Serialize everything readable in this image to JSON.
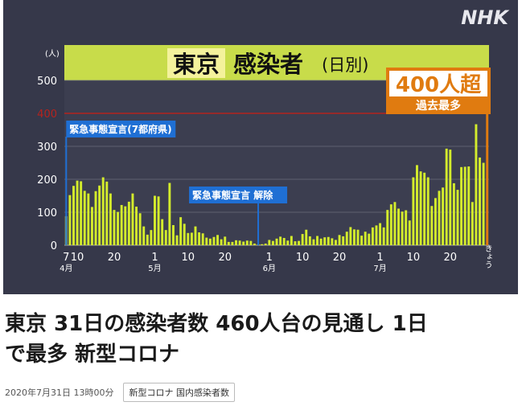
{
  "broadcaster_logo": "NHK",
  "article": {
    "headline_line1": "東京 31日の感染者数 460人台の見通し 1日",
    "headline_line2": "で最多 新型コロナ",
    "timestamp": "2020年7月31日 13時00分",
    "tag": "新型コロナ 国内感染者数"
  },
  "colors": {
    "background": "#36384a",
    "title_bar": "#c8dc4a",
    "bar": "#d4ec2c",
    "threshold_line": "#b4231e",
    "callout_blue": "#1f6fd4",
    "highlight_orange": "#e07b10",
    "axis_text": "#ffffff"
  },
  "chart_data": {
    "type": "bar",
    "title_place": "東京",
    "title_main": "感染者",
    "title_suffix": "(日別)",
    "ylabel": "(人)",
    "ylim": [
      0,
      500
    ],
    "yticks": [
      "500",
      "400",
      "300",
      "200",
      "100",
      "0"
    ],
    "grid": true,
    "threshold": {
      "value": 400,
      "label": "400"
    },
    "xtick_labels": [
      {
        "index": 0,
        "label": "7"
      },
      {
        "index": 3,
        "label": "10"
      },
      {
        "index": 13,
        "label": "20"
      },
      {
        "index": 24,
        "label": "1"
      },
      {
        "index": 33,
        "label": "10"
      },
      {
        "index": 43,
        "label": "20"
      },
      {
        "index": 55,
        "label": "1"
      },
      {
        "index": 64,
        "label": "10"
      },
      {
        "index": 74,
        "label": "20"
      },
      {
        "index": 85,
        "label": "1"
      },
      {
        "index": 94,
        "label": "10"
      },
      {
        "index": 104,
        "label": "20"
      },
      {
        "index": 114,
        "label": "きょう"
      }
    ],
    "month_labels": [
      {
        "index": 0,
        "label": "4月"
      },
      {
        "index": 24,
        "label": "5月"
      },
      {
        "index": 55,
        "label": "6月"
      },
      {
        "index": 85,
        "label": "7月"
      }
    ],
    "values": [
      88,
      152,
      180,
      196,
      194,
      165,
      157,
      116,
      164,
      181,
      206,
      193,
      157,
      107,
      101,
      122,
      118,
      132,
      157,
      117,
      97,
      57,
      32,
      46,
      150,
      148,
      79,
      46,
      189,
      61,
      30,
      85,
      65,
      37,
      38,
      57,
      39,
      36,
      23,
      20,
      25,
      31,
      18,
      26,
      10,
      10,
      15,
      14,
      11,
      14,
      13,
      5,
      3,
      3,
      5,
      16,
      13,
      20,
      26,
      22,
      14,
      28,
      12,
      13,
      34,
      47,
      27,
      18,
      28,
      20,
      24,
      25,
      21,
      16,
      31,
      27,
      41,
      55,
      48,
      47,
      29,
      41,
      35,
      54,
      60,
      67,
      54,
      107,
      124,
      131,
      111,
      102,
      106,
      75,
      206,
      243,
      224,
      220,
      206,
      119,
      143,
      165,
      175,
      293,
      290,
      188,
      168,
      237,
      238,
      239,
      131,
      367,
      266,
      250,
      463
    ],
    "callouts": [
      {
        "index": 0,
        "label": "緊急事態宣言(7都府県)"
      },
      {
        "index": 52,
        "label": "緊急事態宣言 解除"
      }
    ],
    "badge": {
      "main": "400人超",
      "sub": "過去最多"
    }
  }
}
